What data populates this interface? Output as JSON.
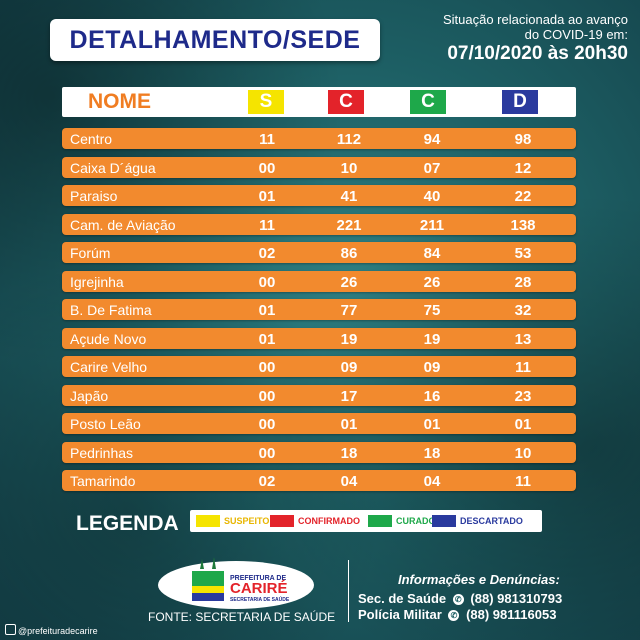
{
  "title": "DETALHAMENTO/SEDE",
  "situation": {
    "line1": "Situação relacionada ao avanço",
    "line2": "do COVID-19 em:",
    "date": "07/10/2020 às 20h30"
  },
  "header": {
    "nome": "NOME",
    "columns": [
      {
        "label": "S",
        "color": "#f5e400"
      },
      {
        "label": "C",
        "color": "#e3232a"
      },
      {
        "label": "C",
        "color": "#1ea84a"
      },
      {
        "label": "D",
        "color": "#2a3a9e"
      }
    ]
  },
  "rows": [
    {
      "name": "Centro",
      "s": "11",
      "c": "112",
      "cu": "94",
      "d": "98"
    },
    {
      "name": "Caixa D´água",
      "s": "00",
      "c": "10",
      "cu": "07",
      "d": "12"
    },
    {
      "name": "Paraiso",
      "s": "01",
      "c": "41",
      "cu": "40",
      "d": "22"
    },
    {
      "name": "Cam. de Aviação",
      "s": "11",
      "c": "221",
      "cu": "211",
      "d": "138"
    },
    {
      "name": "Forúm",
      "s": "02",
      "c": "86",
      "cu": "84",
      "d": "53"
    },
    {
      "name": "Igrejinha",
      "s": "00",
      "c": "26",
      "cu": "26",
      "d": "28"
    },
    {
      "name": "B. De Fatima",
      "s": "01",
      "c": "77",
      "cu": "75",
      "d": "32"
    },
    {
      "name": "Açude Novo",
      "s": "01",
      "c": "19",
      "cu": "19",
      "d": "13"
    },
    {
      "name": "Carire Velho",
      "s": "00",
      "c": "09",
      "cu": "09",
      "d": "11"
    },
    {
      "name": "Japão",
      "s": "00",
      "c": "17",
      "cu": "16",
      "d": "23"
    },
    {
      "name": "Posto Leão",
      "s": "00",
      "c": "01",
      "cu": "01",
      "d": "01"
    },
    {
      "name": "Pedrinhas",
      "s": "00",
      "c": "18",
      "cu": "18",
      "d": "10"
    },
    {
      "name": "Tamarindo",
      "s": "02",
      "c": "04",
      "cu": "04",
      "d": "11"
    }
  ],
  "legend": {
    "title": "LEGENDA",
    "items": [
      {
        "label": "SUSPEITO",
        "color": "#f5e400",
        "text_color": "#e8b600"
      },
      {
        "label": "CONFIRMADO",
        "color": "#e3232a",
        "text_color": "#e3232a"
      },
      {
        "label": "CURADO",
        "color": "#1ea84a",
        "text_color": "#1ea84a"
      },
      {
        "label": "DESCARTADO",
        "color": "#2a3a9e",
        "text_color": "#2a3a9e"
      }
    ]
  },
  "logo": {
    "line1": "PREFEITURA DE",
    "line2": "CARIRÉ",
    "line3": "SECRETARIA DE SAÚDE"
  },
  "fonte": "FONTE: SECRETARIA DE SAÚDE",
  "info": {
    "title": "Informações e Denúncias:",
    "contacts": [
      {
        "label": "Sec. de Saúde",
        "phone": "(88) 981310793",
        "icon": "whatsapp-icon"
      },
      {
        "label": "Polícia Militar",
        "phone": "(88) 981116053",
        "icon": "phone-icon"
      }
    ]
  },
  "instagram": "@prefeituradecarire"
}
